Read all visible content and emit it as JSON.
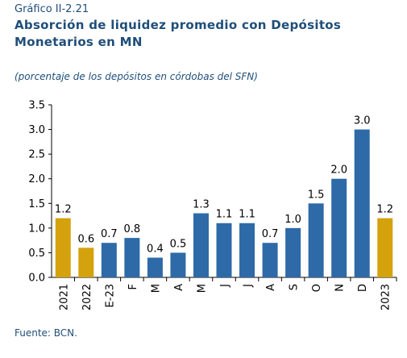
{
  "header": {
    "figure_label": "Gráfico II-2.21",
    "title": "Absorción de liquidez promedio con Depósitos Monetarios en MN",
    "subtitle": "(porcentaje de los depósitos en córdobas del SFN)"
  },
  "footer": {
    "source": "Fuente: BCN."
  },
  "chart_data": {
    "type": "bar",
    "title": "Absorción de liquidez promedio con Depósitos Monetarios en MN",
    "categories": [
      "2021",
      "2022",
      "E-23",
      "F",
      "M",
      "A",
      "M",
      "J",
      "J",
      "A",
      "S",
      "O",
      "N",
      "D",
      "2023"
    ],
    "values": [
      1.2,
      0.6,
      0.7,
      0.8,
      0.4,
      0.5,
      1.3,
      1.1,
      1.1,
      0.7,
      1.0,
      1.5,
      2.0,
      3.0,
      1.2
    ],
    "data_labels": [
      "1.2",
      "0.6",
      "0.7",
      "0.8",
      "0.4",
      "0.5",
      "1.3",
      "1.1",
      "1.1",
      "0.7",
      "1.0",
      "1.5",
      "2.0",
      "3.0",
      "1.2"
    ],
    "bar_colors": [
      "#d4a20c",
      "#d4a20c",
      "#2e6aa8",
      "#2e6aa8",
      "#2e6aa8",
      "#2e6aa8",
      "#2e6aa8",
      "#2e6aa8",
      "#2e6aa8",
      "#2e6aa8",
      "#2e6aa8",
      "#2e6aa8",
      "#2e6aa8",
      "#2e6aa8",
      "#d4a20c"
    ],
    "xlabel": "",
    "ylabel": "",
    "ylim": [
      0,
      3.5
    ],
    "yticks": [
      "0.0",
      "0.5",
      "1.0",
      "1.5",
      "2.0",
      "2.5",
      "3.0",
      "3.5"
    ],
    "grid": false,
    "legend": "none"
  }
}
